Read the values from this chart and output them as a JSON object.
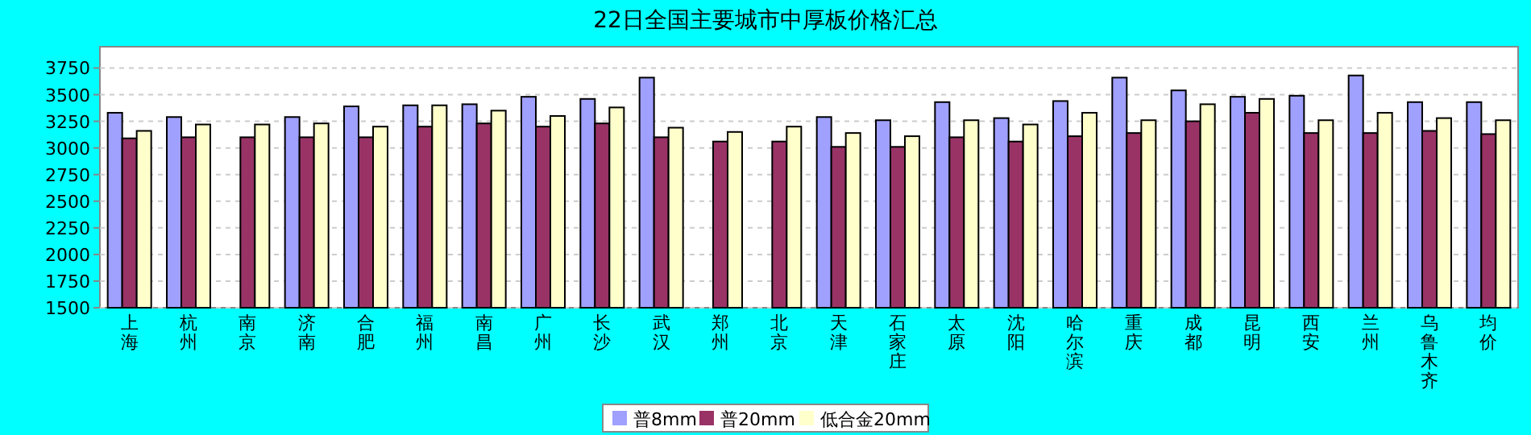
{
  "chart_data": {
    "type": "bar",
    "title": "22日全国主要城市中厚板价格汇总",
    "categories": [
      "上海",
      "杭州",
      "南京",
      "济南",
      "合肥",
      "福州",
      "南昌",
      "广州",
      "长沙",
      "武汉",
      "郑州",
      "北京",
      "天津",
      "石家庄",
      "太原",
      "沈阳",
      "哈尔滨",
      "重庆",
      "成都",
      "昆明",
      "西安",
      "兰州",
      "乌鲁木齐",
      "均价"
    ],
    "series": [
      {
        "name": "普8mm",
        "color": "#a0a0ff",
        "values": [
          3330,
          3290,
          null,
          3290,
          3390,
          3400,
          3410,
          3480,
          3460,
          3660,
          null,
          null,
          3290,
          3260,
          3430,
          3280,
          3440,
          3660,
          3540,
          3480,
          3490,
          3680,
          3430,
          3430
        ]
      },
      {
        "name": "普20mm",
        "color": "#993366",
        "values": [
          3090,
          3100,
          3100,
          3100,
          3100,
          3200,
          3230,
          3200,
          3230,
          3100,
          3060,
          3060,
          3010,
          3010,
          3100,
          3060,
          3110,
          3140,
          3250,
          3330,
          3140,
          3140,
          3160,
          3130
        ]
      },
      {
        "name": "低合金20mm",
        "color": "#ffffcc",
        "values": [
          3160,
          3220,
          3220,
          3230,
          3200,
          3400,
          3350,
          3300,
          3380,
          3190,
          3150,
          3200,
          3140,
          3110,
          3260,
          3220,
          3330,
          3260,
          3410,
          3460,
          3260,
          3330,
          3280,
          3260
        ]
      }
    ],
    "ylim": [
      1500,
      3950
    ],
    "yticks": [
      1500,
      1750,
      2000,
      2250,
      2500,
      2750,
      3000,
      3250,
      3500,
      3750
    ],
    "grid": "y",
    "legend": "bottom"
  }
}
